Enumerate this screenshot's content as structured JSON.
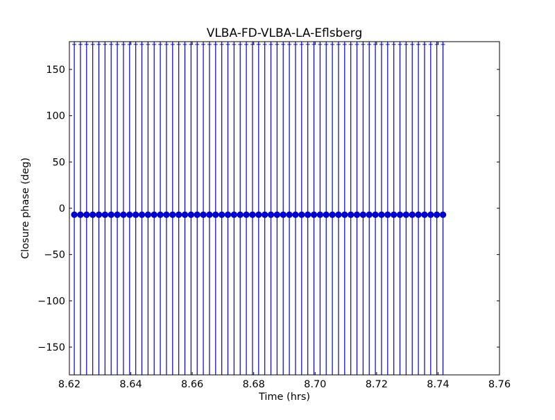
{
  "chart_data": {
    "type": "scatter",
    "title": "VLBA-FD-VLBA-LA-Eflsberg",
    "xlabel": "Time (hrs)",
    "ylabel": "Closure phase (deg)",
    "xlim": [
      8.62,
      8.76
    ],
    "ylim": [
      -180,
      180
    ],
    "xticks": [
      8.62,
      8.64,
      8.66,
      8.68,
      8.7,
      8.72,
      8.74,
      8.76
    ],
    "xtick_labels": [
      "8.62",
      "8.64",
      "8.66",
      "8.68",
      "8.70",
      "8.72",
      "8.74",
      "8.76"
    ],
    "yticks": [
      150,
      100,
      50,
      0,
      -50,
      -100,
      -150
    ],
    "ytick_labels": [
      "150",
      "100",
      "50",
      "0",
      "−50",
      "−100",
      "−150"
    ],
    "grid": false,
    "series": [
      {
        "color": "#0000cc",
        "marker": "circle",
        "error_bars": "vertical, extend beyond plot range",
        "points": [
          {
            "x": 8.6216,
            "y": -7
          },
          {
            "x": 8.6236,
            "y": -7
          },
          {
            "x": 8.6256,
            "y": -7
          },
          {
            "x": 8.6276,
            "y": -7
          },
          {
            "x": 8.6296,
            "y": -7
          },
          {
            "x": 8.6316,
            "y": -7
          },
          {
            "x": 8.6336,
            "y": -7
          },
          {
            "x": 8.6356,
            "y": -7
          },
          {
            "x": 8.6376,
            "y": -7
          },
          {
            "x": 8.6396,
            "y": -7
          },
          {
            "x": 8.6416,
            "y": -7
          },
          {
            "x": 8.6436,
            "y": -7
          },
          {
            "x": 8.6456,
            "y": -7
          },
          {
            "x": 8.6476,
            "y": -7
          },
          {
            "x": 8.6496,
            "y": -7
          },
          {
            "x": 8.6516,
            "y": -7
          },
          {
            "x": 8.6536,
            "y": -7
          },
          {
            "x": 8.6556,
            "y": -7
          },
          {
            "x": 8.6576,
            "y": -7
          },
          {
            "x": 8.6596,
            "y": -7
          },
          {
            "x": 8.6616,
            "y": -7
          },
          {
            "x": 8.6636,
            "y": -7
          },
          {
            "x": 8.6656,
            "y": -7
          },
          {
            "x": 8.6676,
            "y": -7
          },
          {
            "x": 8.6696,
            "y": -7
          },
          {
            "x": 8.6716,
            "y": -7
          },
          {
            "x": 8.6736,
            "y": -7
          },
          {
            "x": 8.6756,
            "y": -7
          },
          {
            "x": 8.6776,
            "y": -7
          },
          {
            "x": 8.6796,
            "y": -7
          },
          {
            "x": 8.6816,
            "y": -7
          },
          {
            "x": 8.6836,
            "y": -7
          },
          {
            "x": 8.6856,
            "y": -7
          },
          {
            "x": 8.6876,
            "y": -7
          },
          {
            "x": 8.6896,
            "y": -7
          },
          {
            "x": 8.6916,
            "y": -7
          },
          {
            "x": 8.6936,
            "y": -7
          },
          {
            "x": 8.6956,
            "y": -7
          },
          {
            "x": 8.6976,
            "y": -7
          },
          {
            "x": 8.6996,
            "y": -7
          },
          {
            "x": 8.7016,
            "y": -7
          },
          {
            "x": 8.7036,
            "y": -7
          },
          {
            "x": 8.7056,
            "y": -7
          },
          {
            "x": 8.7076,
            "y": -7
          },
          {
            "x": 8.7096,
            "y": -7
          },
          {
            "x": 8.7116,
            "y": -7
          },
          {
            "x": 8.7136,
            "y": -7
          },
          {
            "x": 8.7156,
            "y": -7
          },
          {
            "x": 8.7176,
            "y": -7
          },
          {
            "x": 8.7196,
            "y": -7
          },
          {
            "x": 8.7216,
            "y": -7
          },
          {
            "x": 8.7236,
            "y": -7
          },
          {
            "x": 8.7256,
            "y": -7
          },
          {
            "x": 8.7276,
            "y": -7
          },
          {
            "x": 8.7296,
            "y": -7
          },
          {
            "x": 8.7316,
            "y": -7
          },
          {
            "x": 8.7336,
            "y": -7
          },
          {
            "x": 8.7356,
            "y": -7
          },
          {
            "x": 8.7376,
            "y": -7
          },
          {
            "x": 8.7396,
            "y": -7
          },
          {
            "x": 8.7416,
            "y": -7
          }
        ]
      }
    ]
  }
}
